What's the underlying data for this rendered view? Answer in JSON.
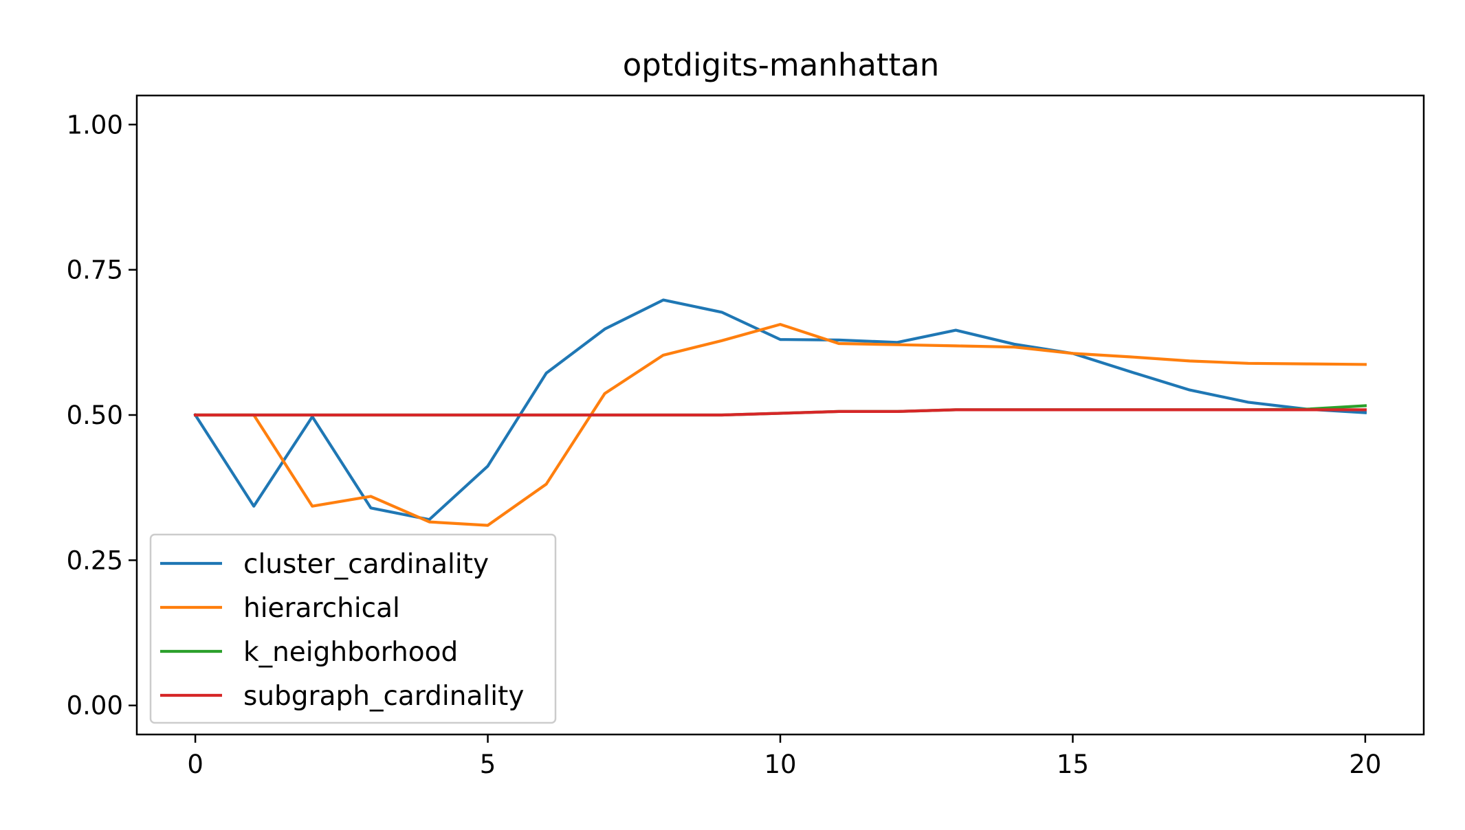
{
  "chart_data": {
    "type": "line",
    "title": "optdigits-manhattan",
    "xlabel": "",
    "ylabel": "",
    "xlim": [
      -1,
      21
    ],
    "ylim": [
      -0.05,
      1.05
    ],
    "xticks": [
      0,
      5,
      10,
      15,
      20
    ],
    "xtick_labels": [
      "0",
      "5",
      "10",
      "15",
      "20"
    ],
    "yticks": [
      0.0,
      0.25,
      0.5,
      0.75,
      1.0
    ],
    "ytick_labels": [
      "0.00",
      "0.25",
      "0.50",
      "0.75",
      "1.00"
    ],
    "grid": false,
    "legend_position": "lower-left",
    "x": [
      0,
      1,
      2,
      3,
      4,
      5,
      6,
      7,
      8,
      9,
      10,
      11,
      12,
      13,
      14,
      15,
      16,
      17,
      18,
      19,
      20
    ],
    "series": [
      {
        "name": "cluster_cardinality",
        "color": "#1f77b4",
        "values": [
          0.5,
          0.343,
          0.497,
          0.34,
          0.32,
          0.412,
          0.572,
          0.648,
          0.698,
          0.677,
          0.63,
          0.629,
          0.625,
          0.646,
          0.622,
          0.606,
          0.574,
          0.543,
          0.522,
          0.51,
          0.504
        ]
      },
      {
        "name": "hierarchical",
        "color": "#ff7f0e",
        "values": [
          0.5,
          0.5,
          0.343,
          0.36,
          0.316,
          0.31,
          0.381,
          0.537,
          0.603,
          0.628,
          0.656,
          0.623,
          0.621,
          0.619,
          0.617,
          0.606,
          0.6,
          0.593,
          0.589,
          0.588,
          0.587
        ]
      },
      {
        "name": "k_neighborhood",
        "color": "#2ca02c",
        "values": [
          0.5,
          0.5,
          0.5,
          0.5,
          0.5,
          0.5,
          0.5,
          0.5,
          0.5,
          0.5,
          0.503,
          0.506,
          0.506,
          0.509,
          0.509,
          0.509,
          0.509,
          0.509,
          0.509,
          0.51,
          0.516
        ]
      },
      {
        "name": "subgraph_cardinality",
        "color": "#d62728",
        "values": [
          0.5,
          0.5,
          0.5,
          0.5,
          0.5,
          0.5,
          0.5,
          0.5,
          0.5,
          0.5,
          0.503,
          0.506,
          0.506,
          0.509,
          0.509,
          0.509,
          0.509,
          0.509,
          0.509,
          0.509,
          0.509
        ]
      }
    ]
  }
}
